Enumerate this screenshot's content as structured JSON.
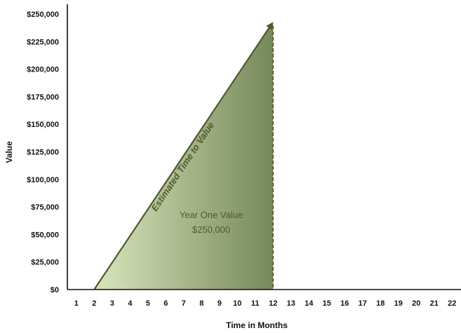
{
  "chart_data": {
    "type": "area",
    "title": "",
    "xlabel": "Time in Months",
    "ylabel": "Value",
    "x_ticks": [
      1,
      2,
      3,
      4,
      5,
      6,
      7,
      8,
      9,
      10,
      11,
      12,
      13,
      14,
      15,
      16,
      17,
      18,
      19,
      20,
      21,
      22
    ],
    "xlim": [
      0.5,
      22.5
    ],
    "y_ticks": [
      "$0",
      "$25,000",
      "$50,000",
      "$75,000",
      "$100,000",
      "$125,000",
      "$150,000",
      "$175,000",
      "$200,000",
      "$225,000",
      "$250,000"
    ],
    "y_tick_values": [
      0,
      25000,
      50000,
      75000,
      100000,
      125000,
      150000,
      175000,
      200000,
      225000,
      250000
    ],
    "ylim": [
      0,
      250000
    ],
    "grid": false,
    "series": [
      {
        "x": [
          2,
          12
        ],
        "y": [
          0,
          243000
        ],
        "style": "solid-arrow"
      }
    ],
    "annotations": {
      "trend_label": "Estimated Time to Value",
      "area_label_line1": "Year One Value",
      "area_label_line2": "$250,000",
      "vertical_marker_x": 12
    },
    "colors": {
      "axis": "#111111",
      "arrow": "#4d5a2c",
      "area_light": "#d9e6be",
      "area_dark": "#76895a",
      "label_text": "#4d5a2c",
      "dashed_marker": "#4d5a2c"
    }
  }
}
